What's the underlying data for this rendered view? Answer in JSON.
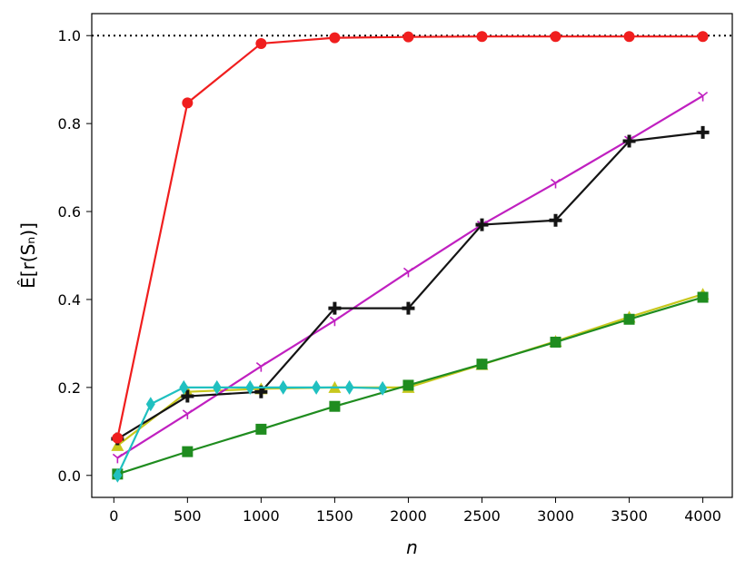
{
  "chart_data": {
    "type": "line",
    "title": "",
    "xlabel": "n",
    "ylabel": "Ê[r(Sₙ)]",
    "xlim": [
      -150,
      4200
    ],
    "ylim": [
      -0.05,
      1.05
    ],
    "xticks": [
      0,
      500,
      1000,
      1500,
      2000,
      2500,
      3000,
      3500,
      4000
    ],
    "yticks": [
      0.0,
      0.2,
      0.4,
      0.6,
      0.8,
      1.0
    ],
    "xtick_labels": [
      "0",
      "500",
      "1000",
      "1500",
      "2000",
      "2500",
      "3000",
      "3500",
      "4000"
    ],
    "ytick_labels": [
      "0.0",
      "0.2",
      "0.4",
      "0.6",
      "0.8",
      "1.0"
    ],
    "reference_line": {
      "y": 1.0,
      "style": "dotted",
      "color": "#000000"
    },
    "grid": false,
    "legend": null,
    "series": [
      {
        "color": "#c8c81e",
        "marker": "triangle",
        "x": [
          25,
          500,
          1000,
          1500,
          2000,
          2500,
          3000,
          3500,
          4000
        ],
        "y": [
          0.068,
          0.19,
          0.197,
          0.2,
          0.2,
          0.252,
          0.305,
          0.36,
          0.412
        ]
      },
      {
        "color": "#1f8c1f",
        "marker": "square",
        "x": [
          25,
          500,
          1000,
          1500,
          2000,
          2500,
          3000,
          3500,
          4000
        ],
        "y": [
          0.003,
          0.054,
          0.105,
          0.157,
          0.205,
          0.253,
          0.303,
          0.355,
          0.405
        ]
      },
      {
        "color": "#c020c0",
        "marker": "tri_down",
        "x": [
          25,
          500,
          1000,
          1500,
          2000,
          2500,
          3000,
          3500,
          4000
        ],
        "y": [
          0.04,
          0.14,
          0.248,
          0.352,
          0.463,
          0.57,
          0.665,
          0.763,
          0.863
        ]
      },
      {
        "color": "#141414",
        "marker": "plus",
        "x": [
          25,
          500,
          1000,
          1500,
          2000,
          2500,
          3000,
          3500,
          4000
        ],
        "y": [
          0.083,
          0.18,
          0.19,
          0.38,
          0.38,
          0.57,
          0.58,
          0.76,
          0.78
        ]
      },
      {
        "color": "#20c0c0",
        "marker": "diamond",
        "x": [
          25,
          250,
          475,
          700,
          925,
          1150,
          1375,
          1600,
          1825
        ],
        "y": [
          0.0,
          0.162,
          0.2,
          0.2,
          0.2,
          0.2,
          0.2,
          0.2,
          0.198
        ]
      },
      {
        "color": "#f01e1e",
        "marker": "circle",
        "x": [
          25,
          500,
          1000,
          1500,
          2000,
          2500,
          3000,
          3500,
          4000
        ],
        "y": [
          0.085,
          0.847,
          0.982,
          0.995,
          0.997,
          0.998,
          0.998,
          0.998,
          0.998
        ]
      }
    ]
  }
}
